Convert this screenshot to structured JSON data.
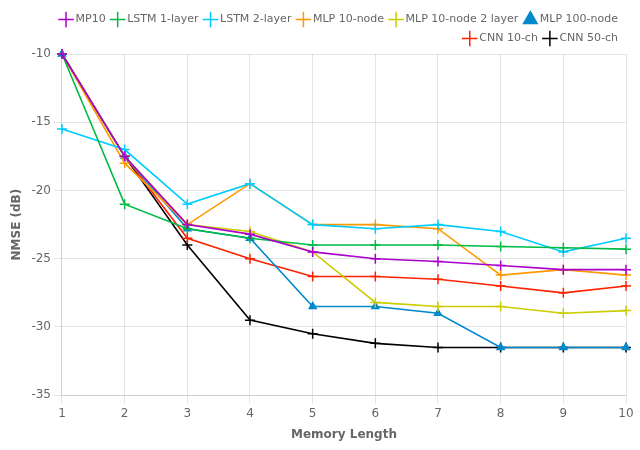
{
  "chart_data": {
    "type": "line",
    "x": [
      1,
      2,
      3,
      4,
      5,
      6,
      7,
      8,
      9,
      10
    ],
    "series": [
      {
        "name": "MP10",
        "color": "#aa00cc",
        "marker": "+",
        "values": [
          -10.0,
          -17.5,
          -22.5,
          -23.2,
          -24.5,
          -25.0,
          -25.2,
          -25.5,
          -25.8,
          -25.8
        ]
      },
      {
        "name": "LSTM 1-layer",
        "color": "#00bb44",
        "marker": "+",
        "values": [
          -10.0,
          -21.0,
          -22.8,
          -23.5,
          -24.0,
          -24.0,
          -24.0,
          -24.1,
          -24.2,
          -24.3
        ]
      },
      {
        "name": "LSTM 2-layer",
        "color": "#00ccff",
        "marker": "+",
        "values": [
          -15.5,
          -17.0,
          -21.0,
          -19.5,
          -22.5,
          -22.8,
          -22.5,
          -23.0,
          -24.5,
          -23.5
        ]
      },
      {
        "name": "MLP 10-node",
        "color": "#ff9900",
        "marker": "+",
        "values": [
          -10.0,
          -18.0,
          -22.5,
          -19.5,
          -22.5,
          -22.5,
          -22.8,
          -26.2,
          -25.8,
          -26.2
        ]
      },
      {
        "name": "MLP 10-node 2 layer",
        "color": "#cccc00",
        "marker": "+",
        "values": [
          -10.0,
          -17.5,
          -22.5,
          -23.0,
          -24.5,
          -28.2,
          -28.5,
          -28.5,
          -29.0,
          -28.8
        ]
      },
      {
        "name": "MLP 100-node",
        "color": "#0088cc",
        "marker": "^",
        "values": [
          -10.0,
          -17.5,
          -22.8,
          -23.5,
          -28.5,
          -28.5,
          -29.0,
          -31.5,
          -31.5,
          -31.5
        ]
      },
      {
        "name": "CNN 10-ch",
        "color": "#ff2200",
        "marker": "+",
        "values": [
          -10.0,
          -17.5,
          -23.5,
          -25.0,
          -26.3,
          -26.3,
          -26.5,
          -27.0,
          -27.5,
          -27.0
        ]
      },
      {
        "name": "CNN 50-ch",
        "color": "#000000",
        "marker": "+",
        "values": [
          -10.0,
          -17.5,
          -24.0,
          -29.5,
          -30.5,
          -31.2,
          -31.5,
          -31.5,
          -31.5,
          -31.5
        ]
      }
    ],
    "xlabel": "Memory Length",
    "ylabel": "NMSE (dB)",
    "xlim": [
      1,
      10
    ],
    "ylim": [
      -35,
      -10
    ],
    "xticks": [
      1,
      2,
      3,
      4,
      5,
      6,
      7,
      8,
      9,
      10
    ],
    "yticks": [
      -35,
      -30,
      -25,
      -20,
      -15,
      -10
    ],
    "grid": true,
    "legend": "upper right"
  }
}
